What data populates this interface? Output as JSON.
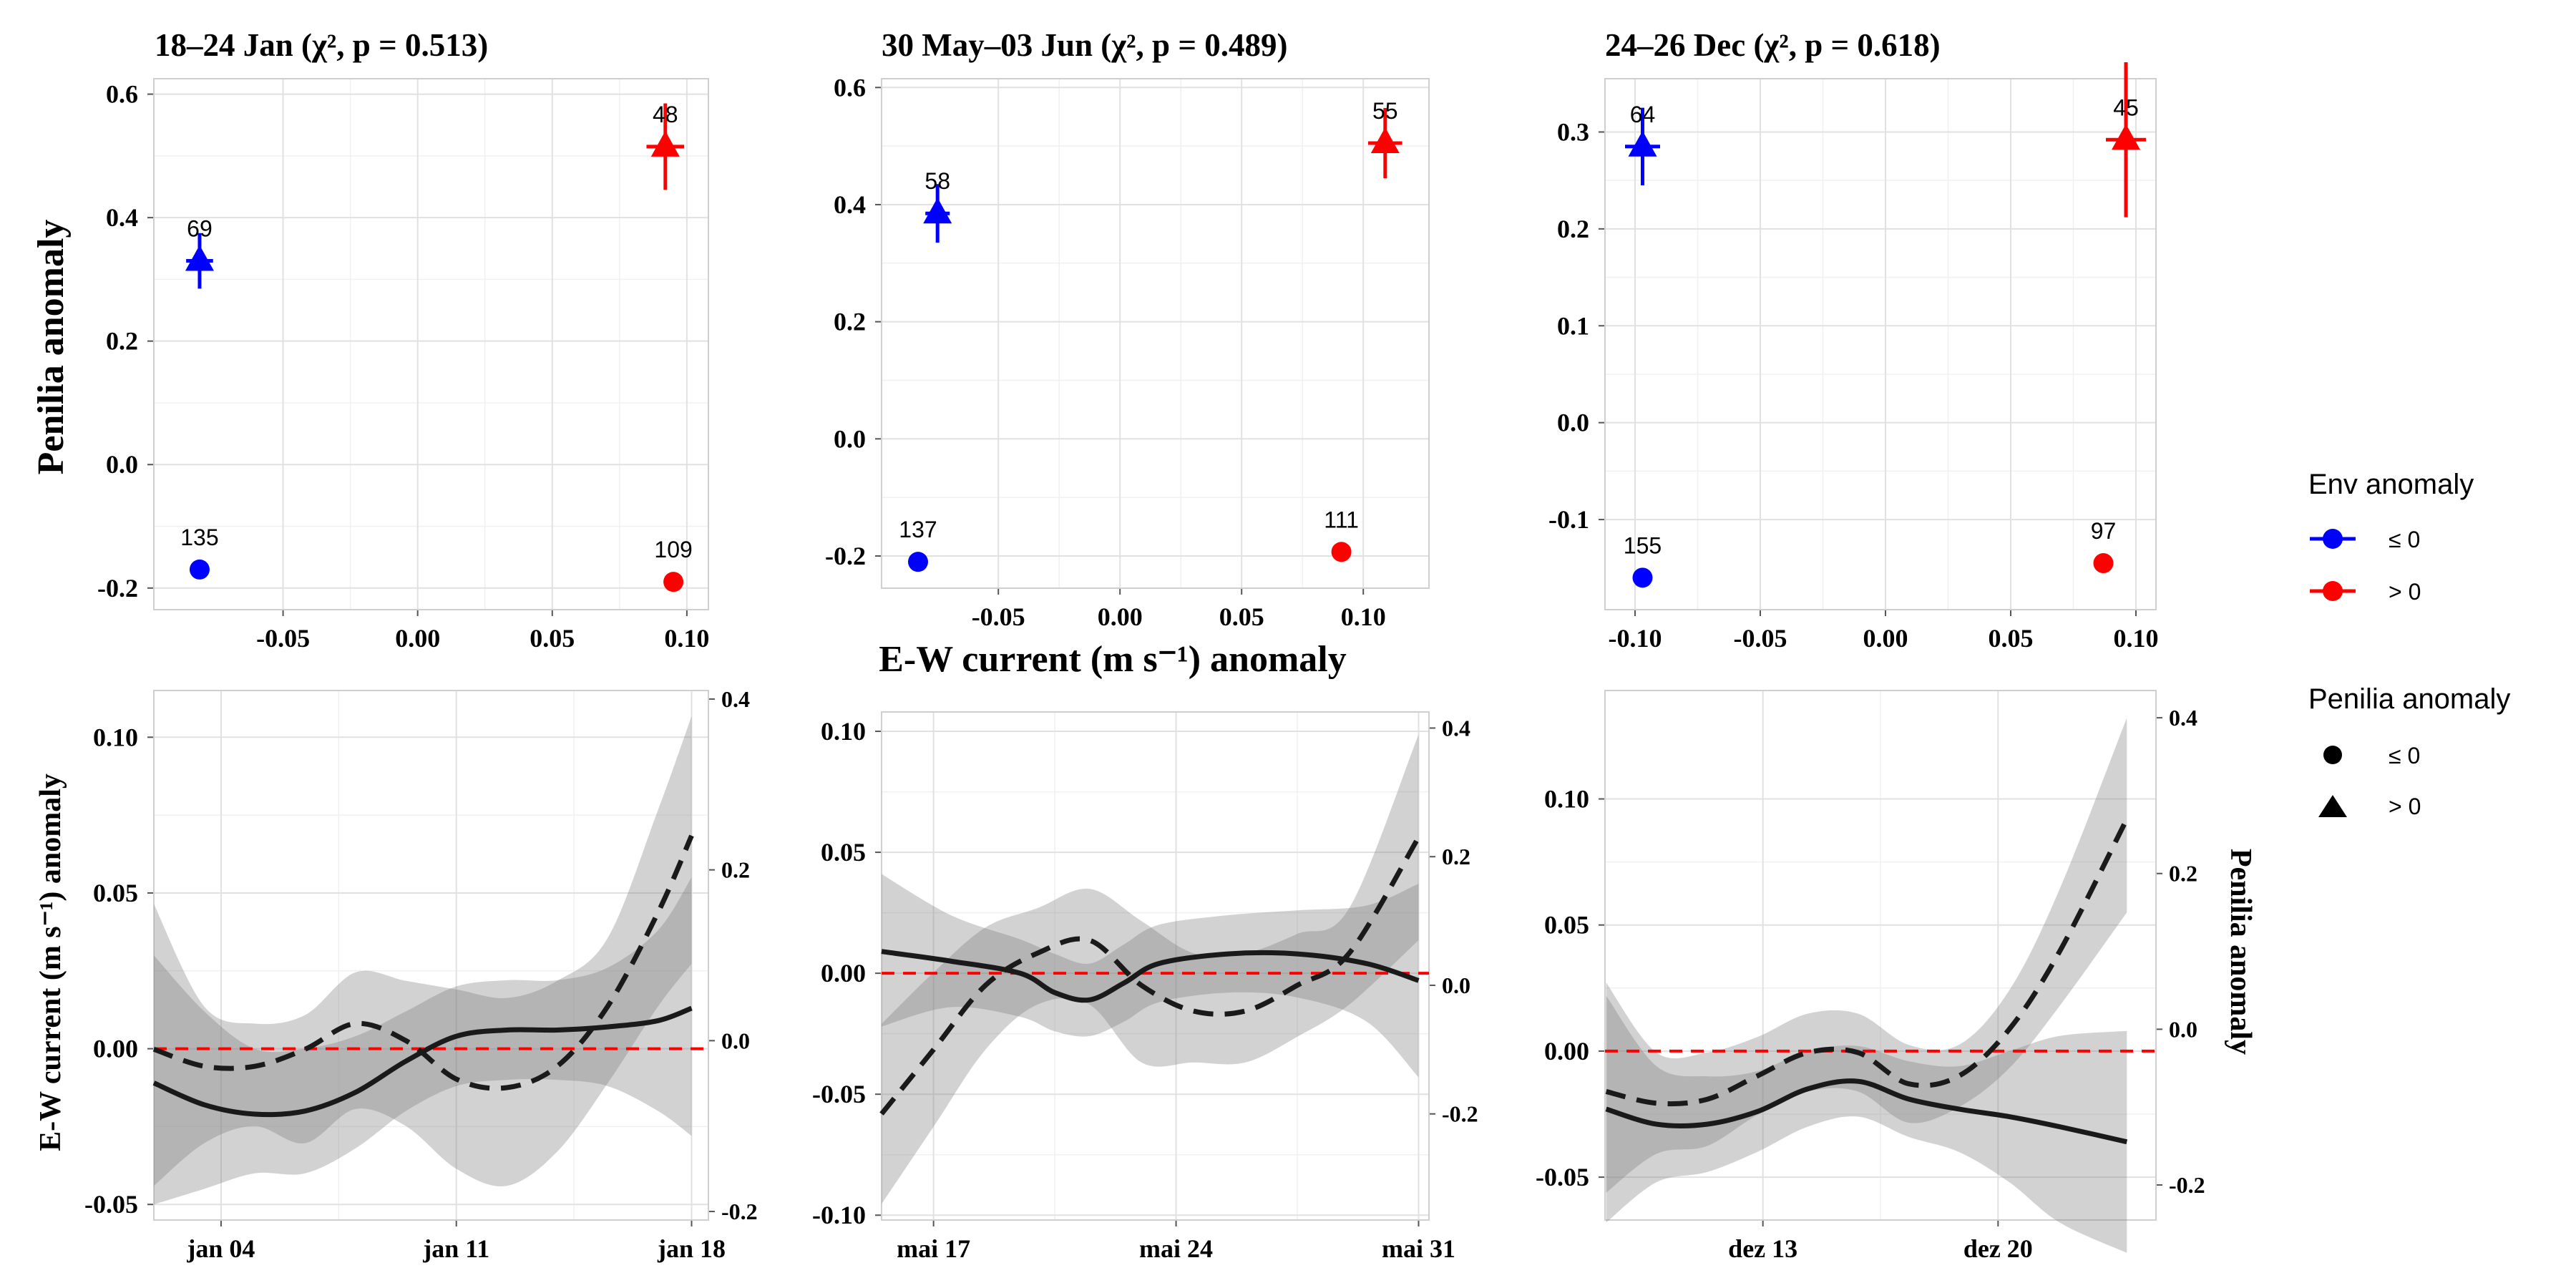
{
  "chart_data": [
    {
      "panel": "top-left",
      "type": "scatter",
      "title": "18–24 Jan (χ², p = 0.513)",
      "xlabel": "",
      "ylabel": "Penilia anomaly",
      "xlim": [
        -0.098,
        0.108
      ],
      "ylim": [
        -0.235,
        0.625
      ],
      "xticks": [
        -0.05,
        0.0,
        0.05,
        0.1
      ],
      "xtick_labels": [
        "-0.05",
        "0.00",
        "0.05",
        "0.10"
      ],
      "yticks": [
        -0.2,
        0.0,
        0.2,
        0.4,
        0.6
      ],
      "ytick_labels": [
        "-0.2",
        "0.0",
        "0.2",
        "0.4",
        "0.6"
      ],
      "points": [
        {
          "x": -0.081,
          "y": 0.33,
          "env": "≤ 0",
          "shape": "triangle",
          "label": "69",
          "xerr": 0.005,
          "yerr": 0.045
        },
        {
          "x": -0.081,
          "y": -0.17,
          "env": "≤ 0",
          "shape": "circle",
          "label": "135",
          "xerr": 0.002,
          "yerr": 0.006
        },
        {
          "x": 0.092,
          "y": 0.515,
          "env": "> 0",
          "shape": "triangle",
          "label": "48",
          "xerr": 0.007,
          "yerr": 0.07
        },
        {
          "x": 0.095,
          "y": -0.19,
          "env": "> 0",
          "shape": "circle",
          "label": "109",
          "xerr": 0.003,
          "yerr": 0.006
        }
      ]
    },
    {
      "panel": "top-middle",
      "type": "scatter",
      "title": "30 May–03 Jun (χ², p = 0.489)",
      "xlabel": "E-W current (m s⁻¹) anomaly",
      "ylabel": "",
      "xlim": [
        -0.098,
        0.127
      ],
      "ylim": [
        -0.255,
        0.615
      ],
      "xticks": [
        -0.05,
        0.0,
        0.05,
        0.1
      ],
      "xtick_labels": [
        "-0.05",
        "0.00",
        "0.05",
        "0.10"
      ],
      "yticks": [
        -0.2,
        0.0,
        0.2,
        0.4,
        0.6
      ],
      "ytick_labels": [
        "-0.2",
        "0.0",
        "0.2",
        "0.4",
        "0.6"
      ],
      "points": [
        {
          "x": -0.075,
          "y": 0.385,
          "env": "≤ 0",
          "shape": "triangle",
          "label": "58",
          "xerr": 0.005,
          "yerr": 0.05
        },
        {
          "x": -0.083,
          "y": -0.21,
          "env": "≤ 0",
          "shape": "circle",
          "label": "137",
          "xerr": 0.002,
          "yerr": 0.006
        },
        {
          "x": 0.109,
          "y": 0.505,
          "env": "> 0",
          "shape": "triangle",
          "label": "55",
          "xerr": 0.007,
          "yerr": 0.06
        },
        {
          "x": 0.091,
          "y": -0.193,
          "env": "> 0",
          "shape": "circle",
          "label": "111",
          "xerr": 0.003,
          "yerr": 0.006
        }
      ]
    },
    {
      "panel": "top-right",
      "type": "scatter",
      "title": "24–26 Dec (χ², p = 0.618)",
      "xlabel": "",
      "ylabel": "",
      "xlim": [
        -0.112,
        0.108
      ],
      "ylim": [
        -0.193,
        0.355
      ],
      "xticks": [
        -0.1,
        -0.05,
        0.0,
        0.05,
        0.1
      ],
      "xtick_labels": [
        "-0.10",
        "-0.05",
        "0.00",
        "0.05",
        "0.10"
      ],
      "yticks": [
        -0.1,
        0.0,
        0.1,
        0.2,
        0.3
      ],
      "ytick_labels": [
        "-0.1",
        "0.0",
        "0.1",
        "0.2",
        "0.3"
      ],
      "points": [
        {
          "x": -0.097,
          "y": 0.285,
          "env": "≤ 0",
          "shape": "triangle",
          "label": "64",
          "xerr": 0.007,
          "yerr": 0.04
        },
        {
          "x": -0.097,
          "y": -0.16,
          "env": "≤ 0",
          "shape": "circle",
          "label": "155",
          "xerr": 0.002,
          "yerr": 0.004
        },
        {
          "x": 0.096,
          "y": 0.292,
          "env": "> 0",
          "shape": "triangle",
          "label": "45",
          "xerr": 0.008,
          "yerr": 0.08
        },
        {
          "x": 0.087,
          "y": -0.145,
          "env": "> 0",
          "shape": "circle",
          "label": "97",
          "xerr": 0.003,
          "yerr": 0.004
        }
      ]
    },
    {
      "panel": "bottom-left",
      "type": "line",
      "title": "",
      "ylabel": "E-W current (m s⁻¹) anomaly",
      "ylabel_right": "",
      "xlim": [
        "2024-01-02",
        "2024-01-18.5"
      ],
      "ylim": [
        -0.055,
        0.115
      ],
      "ylim_right": [
        -0.21,
        0.41
      ],
      "xticks": [
        "2024-01-04",
        "2024-01-11",
        "2024-01-18"
      ],
      "xtick_labels": [
        "jan 04",
        "jan 11",
        "jan 18"
      ],
      "yticks": [
        -0.05,
        0.0,
        0.05,
        0.1
      ],
      "ytick_labels": [
        "-0.05",
        "0.00",
        "0.05",
        "0.10"
      ],
      "yticks_right": [
        -0.2,
        0.0,
        0.2,
        0.4
      ],
      "ytick_labels_right": [
        "-0.2",
        "0.0",
        "0.2",
        "0.4"
      ],
      "zero_line": 0,
      "series": [
        {
          "axis": "left",
          "style": "solid",
          "x": [
            0,
            1.5,
            3,
            4.5,
            6,
            7.5,
            9,
            10.5,
            12,
            13.5,
            15,
            16
          ],
          "y": [
            -0.011,
            -0.018,
            -0.021,
            -0.02,
            -0.014,
            -0.004,
            0.004,
            0.006,
            0.006,
            0.007,
            0.009,
            0.013
          ],
          "lower": [
            -0.05,
            -0.045,
            -0.04,
            -0.04,
            -0.032,
            -0.02,
            -0.012,
            -0.01,
            -0.01,
            -0.012,
            -0.02,
            -0.028
          ],
          "upper": [
            0.03,
            0.012,
            0.0,
            0.0,
            0.004,
            0.012,
            0.02,
            0.022,
            0.022,
            0.026,
            0.038,
            0.055
          ]
        },
        {
          "axis": "right",
          "style": "dashed",
          "x": [
            0,
            1.5,
            3,
            4.5,
            6,
            7.5,
            9,
            10.5,
            12,
            13.5,
            15,
            16
          ],
          "y": [
            -0.01,
            -0.03,
            -0.03,
            -0.01,
            0.02,
            0.0,
            -0.045,
            -0.055,
            -0.03,
            0.04,
            0.15,
            0.24
          ],
          "lower": [
            -0.17,
            -0.12,
            -0.1,
            -0.12,
            -0.08,
            -0.1,
            -0.15,
            -0.17,
            -0.13,
            -0.05,
            0.04,
            0.09
          ],
          "upper": [
            0.16,
            0.04,
            0.02,
            0.03,
            0.08,
            0.07,
            0.06,
            0.05,
            0.07,
            0.12,
            0.27,
            0.38
          ]
        }
      ]
    },
    {
      "panel": "bottom-middle",
      "type": "line",
      "title": "",
      "ylabel": "",
      "ylabel_right": "",
      "xlim": [
        "2024-05-15.5",
        "2024-05-31.3"
      ],
      "ylim": [
        -0.102,
        0.108
      ],
      "ylim_right": [
        -0.365,
        0.425
      ],
      "xticks": [
        "2024-05-17",
        "2024-05-24",
        "2024-05-31"
      ],
      "xtick_labels": [
        "mai 17",
        "mai 24",
        "mai 31"
      ],
      "yticks": [
        -0.1,
        -0.05,
        0.0,
        0.05,
        0.1
      ],
      "ytick_labels": [
        "-0.10",
        "-0.05",
        "0.00",
        "0.05",
        "0.10"
      ],
      "yticks_right": [
        -0.2,
        0.0,
        0.2,
        0.4
      ],
      "ytick_labels_right": [
        "-0.2",
        "0.0",
        "0.2",
        "0.4"
      ],
      "zero_line": 0,
      "series": [
        {
          "axis": "left",
          "style": "solid",
          "x": [
            0,
            2,
            4,
            5,
            6,
            7,
            8,
            10,
            12,
            14,
            15.5
          ],
          "y": [
            0.009,
            0.005,
            0.0,
            -0.008,
            -0.011,
            -0.004,
            0.004,
            0.008,
            0.008,
            0.004,
            -0.003
          ],
          "lower": [
            -0.022,
            -0.014,
            -0.018,
            -0.024,
            -0.026,
            -0.02,
            -0.012,
            -0.008,
            -0.01,
            -0.02,
            -0.043
          ],
          "upper": [
            0.041,
            0.024,
            0.014,
            0.008,
            0.004,
            0.012,
            0.02,
            0.024,
            0.026,
            0.028,
            0.037
          ]
        },
        {
          "axis": "right",
          "style": "dashed",
          "x": [
            0,
            1.5,
            3,
            4.5,
            6,
            7.5,
            9,
            10.5,
            12,
            13.5,
            15.5
          ],
          "y": [
            -0.2,
            -0.1,
            0.0,
            0.05,
            0.07,
            0.0,
            -0.04,
            -0.04,
            0.0,
            0.05,
            0.23
          ],
          "lower": [
            -0.34,
            -0.22,
            -0.1,
            -0.03,
            -0.03,
            -0.12,
            -0.12,
            -0.12,
            -0.08,
            -0.03,
            0.07
          ],
          "upper": [
            -0.06,
            0.02,
            0.09,
            0.12,
            0.15,
            0.1,
            0.05,
            0.05,
            0.08,
            0.12,
            0.39
          ]
        }
      ]
    },
    {
      "panel": "bottom-right",
      "type": "line",
      "title": "",
      "ylabel": "",
      "ylabel_right": "Penilia anomaly",
      "xlim": [
        "2023-12-08.3",
        "2023-12-24.7"
      ],
      "ylim": [
        -0.067,
        0.143
      ],
      "ylim_right": [
        -0.245,
        0.435
      ],
      "xticks": [
        "2023-12-13",
        "2023-12-20"
      ],
      "xtick_labels": [
        "dez 13",
        "dez 20"
      ],
      "yticks": [
        -0.05,
        0.0,
        0.05,
        0.1
      ],
      "ytick_labels": [
        "-0.05",
        "0.00",
        "0.05",
        "0.10"
      ],
      "yticks_right": [
        -0.2,
        0.0,
        0.2,
        0.4
      ],
      "ytick_labels_right": [
        "-0.2",
        "0.0",
        "0.2",
        "0.4"
      ],
      "zero_line": 0,
      "series": [
        {
          "axis": "left",
          "style": "solid",
          "x": [
            0,
            1.5,
            3,
            4.5,
            6,
            7.5,
            9,
            10.5,
            12,
            13.5,
            15.5
          ],
          "y": [
            -0.023,
            -0.029,
            -0.029,
            -0.024,
            -0.015,
            -0.012,
            -0.019,
            -0.023,
            -0.026,
            -0.03,
            -0.036
          ],
          "lower": [
            -0.068,
            -0.052,
            -0.048,
            -0.04,
            -0.03,
            -0.026,
            -0.034,
            -0.04,
            -0.052,
            -0.068,
            -0.08
          ],
          "upper": [
            0.022,
            -0.006,
            -0.01,
            -0.008,
            0.0,
            0.002,
            -0.004,
            -0.006,
            0.0,
            0.006,
            0.008
          ]
        },
        {
          "axis": "right",
          "style": "dashed",
          "x": [
            0,
            1.5,
            3,
            4.5,
            6,
            7.5,
            9,
            10.5,
            12,
            13.5,
            15.5
          ],
          "y": [
            -0.08,
            -0.095,
            -0.09,
            -0.06,
            -0.03,
            -0.03,
            -0.07,
            -0.06,
            0.0,
            0.1,
            0.27
          ],
          "lower": [
            -0.21,
            -0.16,
            -0.15,
            -0.11,
            -0.08,
            -0.08,
            -0.12,
            -0.1,
            -0.05,
            0.03,
            0.15
          ],
          "upper": [
            0.06,
            -0.03,
            -0.03,
            -0.01,
            0.02,
            0.02,
            -0.02,
            -0.02,
            0.05,
            0.18,
            0.4
          ]
        }
      ]
    }
  ],
  "legend": {
    "env_title": "Env anomaly",
    "env_items": [
      {
        "label": "≤ 0",
        "color": "#0000ff"
      },
      {
        "label": "> 0",
        "color": "#ff0000"
      }
    ],
    "penilia_title": "Penilia anomaly",
    "penilia_items": [
      {
        "label": "≤ 0",
        "shape": "circle"
      },
      {
        "label": "> 0",
        "shape": "triangle"
      }
    ]
  },
  "colors": {
    "env_le0": "#0000ff",
    "env_gt0": "#ff0000",
    "zero_line": "#ff0000",
    "line": "#1a1a1a",
    "band": "#7f7f7f"
  }
}
